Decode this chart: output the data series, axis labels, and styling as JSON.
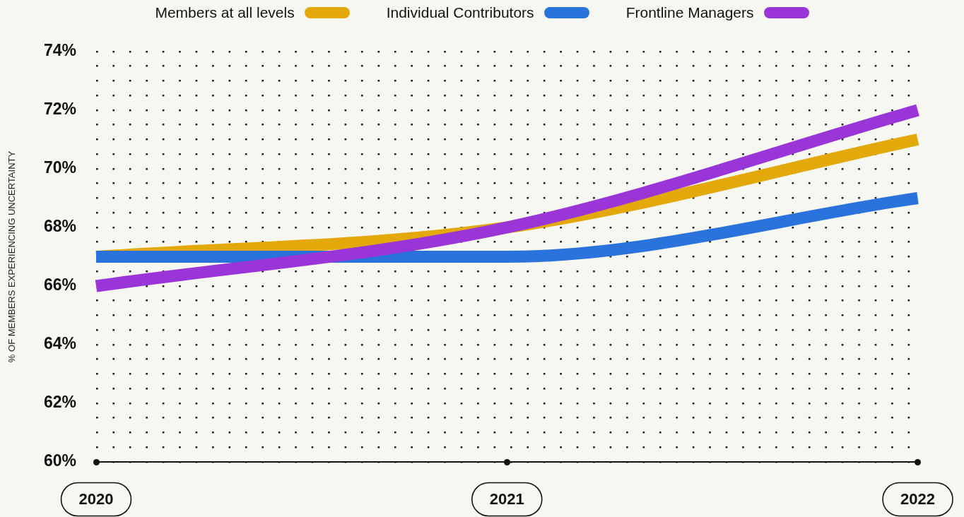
{
  "chart_data": {
    "type": "line",
    "ylabel": "% OF MEMBERS EXPERIENCING UNCERTAINTY",
    "categories": [
      "2020",
      "2021",
      "2022"
    ],
    "series": [
      {
        "name": "Members at all levels",
        "color": "#e3a80a",
        "values": [
          67,
          68,
          71
        ]
      },
      {
        "name": "Individual Contributors",
        "color": "#2a72dc",
        "values": [
          67,
          67,
          69
        ]
      },
      {
        "name": "Frontline Managers",
        "color": "#9a35d8",
        "values": [
          66,
          68,
          72
        ]
      }
    ],
    "ylim": [
      60,
      74
    ],
    "yticks": [
      {
        "value": 60,
        "label": "60%"
      },
      {
        "value": 60.5,
        "label": null
      },
      {
        "value": 61,
        "label": null
      },
      {
        "value": 61.5,
        "label": null
      },
      {
        "value": 62,
        "label": "62%"
      },
      {
        "value": 62.5,
        "label": null
      },
      {
        "value": 63,
        "label": null
      },
      {
        "value": 63.5,
        "label": null
      },
      {
        "value": 64,
        "label": "64%"
      },
      {
        "value": 64.5,
        "label": null
      },
      {
        "value": 65,
        "label": null
      },
      {
        "value": 65.5,
        "label": null
      },
      {
        "value": 66,
        "label": "66%"
      },
      {
        "value": 66.5,
        "label": null
      },
      {
        "value": 67,
        "label": null
      },
      {
        "value": 67.5,
        "label": null
      },
      {
        "value": 68,
        "label": "68%"
      },
      {
        "value": 68.5,
        "label": null
      },
      {
        "value": 69,
        "label": null
      },
      {
        "value": 69.5,
        "label": null
      },
      {
        "value": 70,
        "label": "70%"
      },
      {
        "value": 70.5,
        "label": null
      },
      {
        "value": 71,
        "label": null
      },
      {
        "value": 71.5,
        "label": null
      },
      {
        "value": 72,
        "label": "72%"
      },
      {
        "value": 72.5,
        "label": null
      },
      {
        "value": 73,
        "label": null
      },
      {
        "value": 73.5,
        "label": null
      },
      {
        "value": 74,
        "label": "74%"
      }
    ],
    "grid": "y",
    "legend": "top"
  }
}
